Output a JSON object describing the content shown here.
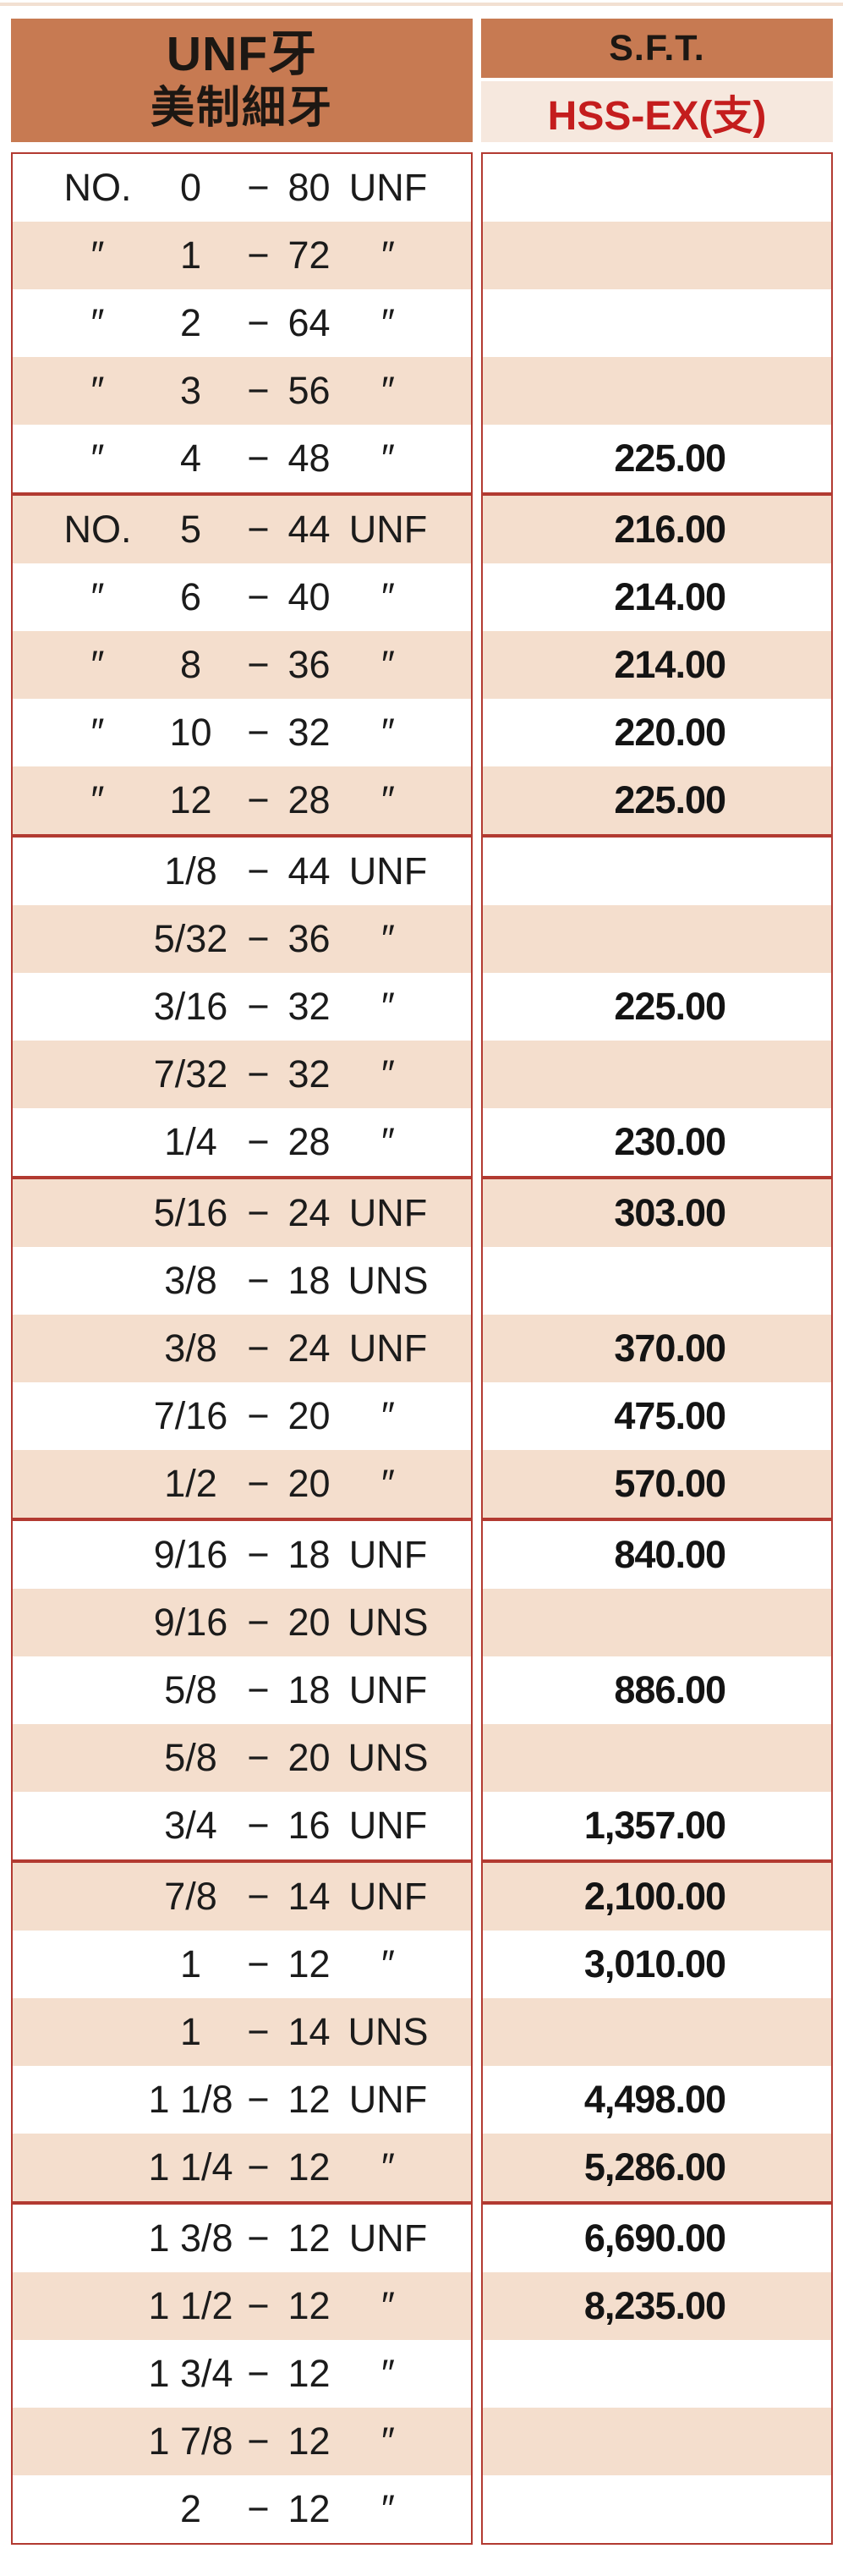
{
  "header": {
    "left_title_line1": "UNF牙",
    "left_title_line2": "美制細牙",
    "right_title": "S.F.T.",
    "right_subtitle": "HSS-EX(支)"
  },
  "colors": {
    "header_bg": "#C77A52",
    "zebra_row_bg": "#F4DECD",
    "subheader_bg": "#F6E8DE",
    "border_red": "#B23A31",
    "subtitle_red": "#C41D1D",
    "text_black": "#1b1b1b"
  },
  "table": {
    "groups": [
      {
        "rows": [
          {
            "prefix": "NO.",
            "size": "0",
            "dash": "−",
            "pitch": "80",
            "std": "UNF",
            "price": ""
          },
          {
            "prefix": "″",
            "size": "1",
            "dash": "−",
            "pitch": "72",
            "std": "″",
            "price": ""
          },
          {
            "prefix": "″",
            "size": "2",
            "dash": "−",
            "pitch": "64",
            "std": "″",
            "price": ""
          },
          {
            "prefix": "″",
            "size": "3",
            "dash": "−",
            "pitch": "56",
            "std": "″",
            "price": ""
          },
          {
            "prefix": "″",
            "size": "4",
            "dash": "−",
            "pitch": "48",
            "std": "″",
            "price": "225.00"
          }
        ]
      },
      {
        "rows": [
          {
            "prefix": "NO.",
            "size": "5",
            "dash": "−",
            "pitch": "44",
            "std": "UNF",
            "price": "216.00"
          },
          {
            "prefix": "″",
            "size": "6",
            "dash": "−",
            "pitch": "40",
            "std": "″",
            "price": "214.00"
          },
          {
            "prefix": "″",
            "size": "8",
            "dash": "−",
            "pitch": "36",
            "std": "″",
            "price": "214.00"
          },
          {
            "prefix": "″",
            "size": "10",
            "dash": "−",
            "pitch": "32",
            "std": "″",
            "price": "220.00"
          },
          {
            "prefix": "″",
            "size": "12",
            "dash": "−",
            "pitch": "28",
            "std": "″",
            "price": "225.00"
          }
        ]
      },
      {
        "rows": [
          {
            "prefix": "",
            "size": "1/8",
            "dash": "−",
            "pitch": "44",
            "std": "UNF",
            "price": ""
          },
          {
            "prefix": "",
            "size": "5/32",
            "dash": "−",
            "pitch": "36",
            "std": "″",
            "price": ""
          },
          {
            "prefix": "",
            "size": "3/16",
            "dash": "−",
            "pitch": "32",
            "std": "″",
            "price": "225.00"
          },
          {
            "prefix": "",
            "size": "7/32",
            "dash": "−",
            "pitch": "32",
            "std": "″",
            "price": ""
          },
          {
            "prefix": "",
            "size": "1/4",
            "dash": "−",
            "pitch": "28",
            "std": "″",
            "price": "230.00"
          }
        ]
      },
      {
        "rows": [
          {
            "prefix": "",
            "size": "5/16",
            "dash": "−",
            "pitch": "24",
            "std": "UNF",
            "price": "303.00"
          },
          {
            "prefix": "",
            "size": "3/8",
            "dash": "−",
            "pitch": "18",
            "std": "UNS",
            "price": ""
          },
          {
            "prefix": "",
            "size": "3/8",
            "dash": "−",
            "pitch": "24",
            "std": "UNF",
            "price": "370.00"
          },
          {
            "prefix": "",
            "size": "7/16",
            "dash": "−",
            "pitch": "20",
            "std": "″",
            "price": "475.00"
          },
          {
            "prefix": "",
            "size": "1/2",
            "dash": "−",
            "pitch": "20",
            "std": "″",
            "price": "570.00"
          }
        ]
      },
      {
        "rows": [
          {
            "prefix": "",
            "size": "9/16",
            "dash": "−",
            "pitch": "18",
            "std": "UNF",
            "price": "840.00"
          },
          {
            "prefix": "",
            "size": "9/16",
            "dash": "−",
            "pitch": "20",
            "std": "UNS",
            "price": ""
          },
          {
            "prefix": "",
            "size": "5/8",
            "dash": "−",
            "pitch": "18",
            "std": "UNF",
            "price": "886.00"
          },
          {
            "prefix": "",
            "size": "5/8",
            "dash": "−",
            "pitch": "20",
            "std": "UNS",
            "price": ""
          },
          {
            "prefix": "",
            "size": "3/4",
            "dash": "−",
            "pitch": "16",
            "std": "UNF",
            "price": "1,357.00"
          }
        ]
      },
      {
        "rows": [
          {
            "prefix": "",
            "size": "7/8",
            "dash": "−",
            "pitch": "14",
            "std": "UNF",
            "price": "2,100.00"
          },
          {
            "prefix": "",
            "size": "1",
            "dash": "−",
            "pitch": "12",
            "std": "″",
            "price": "3,010.00"
          },
          {
            "prefix": "",
            "size": "1",
            "dash": "−",
            "pitch": "14",
            "std": "UNS",
            "price": ""
          },
          {
            "prefix": "",
            "size": "1 1/8",
            "dash": "−",
            "pitch": "12",
            "std": "UNF",
            "price": "4,498.00"
          },
          {
            "prefix": "",
            "size": "1 1/4",
            "dash": "−",
            "pitch": "12",
            "std": "″",
            "price": "5,286.00"
          }
        ]
      },
      {
        "rows": [
          {
            "prefix": "",
            "size": "1 3/8",
            "dash": "−",
            "pitch": "12",
            "std": "UNF",
            "price": "6,690.00"
          },
          {
            "prefix": "",
            "size": "1 1/2",
            "dash": "−",
            "pitch": "12",
            "std": "″",
            "price": "8,235.00"
          },
          {
            "prefix": "",
            "size": "1 3/4",
            "dash": "−",
            "pitch": "12",
            "std": "″",
            "price": ""
          },
          {
            "prefix": "",
            "size": "1 7/8",
            "dash": "−",
            "pitch": "12",
            "std": "″",
            "price": ""
          },
          {
            "prefix": "",
            "size": "2",
            "dash": "−",
            "pitch": "12",
            "std": "″",
            "price": ""
          }
        ]
      }
    ]
  }
}
